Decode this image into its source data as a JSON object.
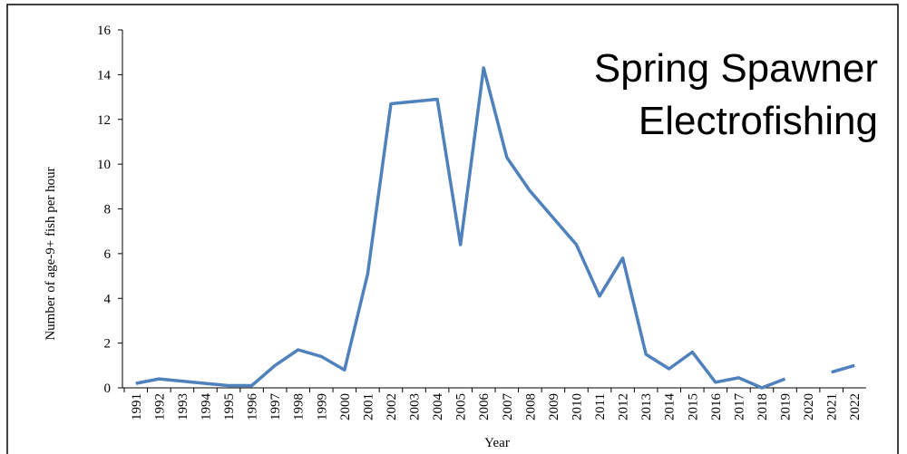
{
  "chart_data": {
    "type": "line",
    "annotation": [
      "Spring Spawner",
      "Electrofishing"
    ],
    "xlabel": "Year",
    "ylabel": "Number of age-9+ fish per hour",
    "categories": [
      "1991",
      "1992",
      "1993",
      "1994",
      "1995",
      "1996",
      "1997",
      "1998",
      "1999",
      "2000",
      "2001",
      "2002",
      "2003",
      "2004",
      "2005",
      "2006",
      "2007",
      "2008",
      "2009",
      "2010",
      "2011",
      "2012",
      "2013",
      "2014",
      "2015",
      "2016",
      "2017",
      "2018",
      "2019",
      "2020",
      "2021",
      "2022"
    ],
    "series": [
      {
        "color": "#4f81bd",
        "values": [
          0.2,
          0.4,
          0.3,
          0.2,
          0.1,
          0.1,
          1.0,
          1.7,
          1.4,
          0.8,
          5.1,
          12.7,
          12.8,
          12.9,
          6.4,
          14.3,
          10.3,
          8.8,
          7.6,
          6.4,
          4.1,
          5.8,
          1.5,
          0.85,
          1.6,
          0.25,
          0.45,
          0.0,
          0.4,
          null,
          0.7,
          1.0
        ]
      }
    ],
    "ylim": [
      0,
      16
    ],
    "yticks": [
      0,
      2,
      4,
      6,
      8,
      10,
      12,
      14,
      16
    ],
    "grid": false
  }
}
